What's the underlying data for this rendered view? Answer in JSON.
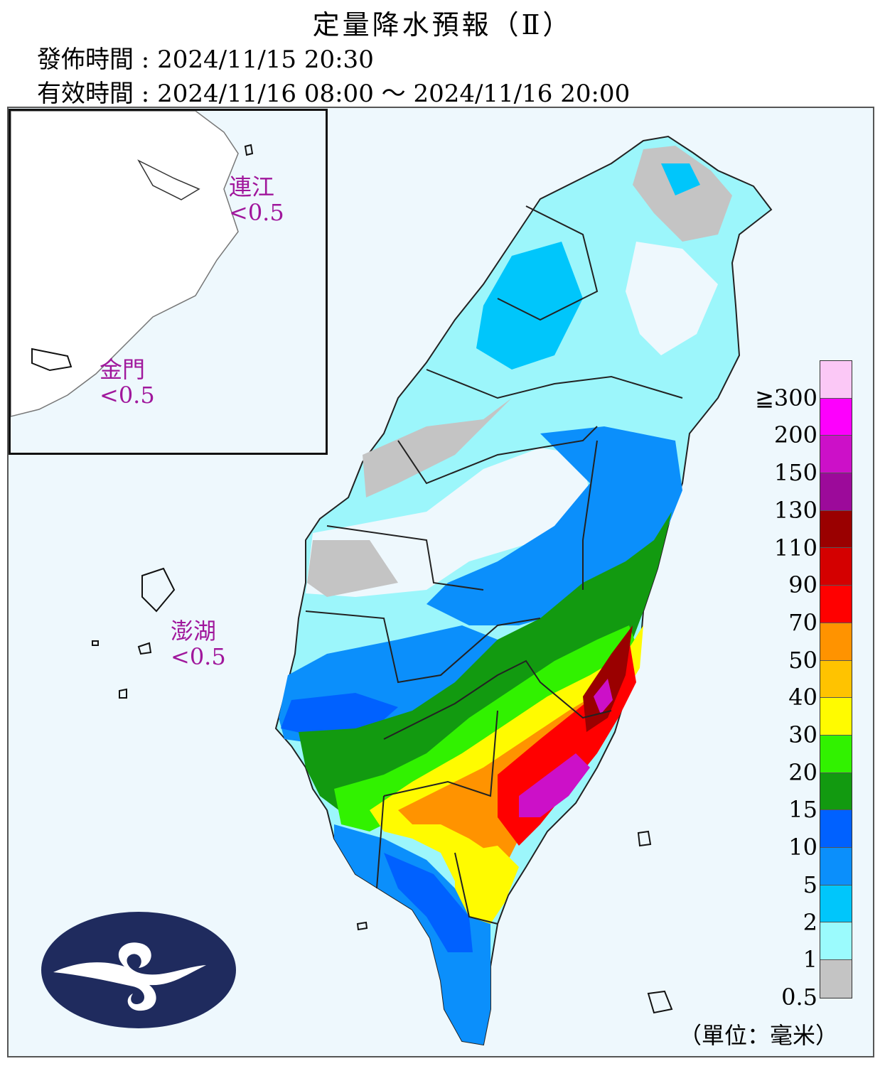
{
  "header": {
    "title": "定量降水預報（Ⅱ）",
    "issue_time": "發佈時間 : 2024/11/15 20:30",
    "valid_time": "有效時間 : 2024/11/16 08:00 ～ 2024/11/16 20:00"
  },
  "islands": {
    "lienchiang": {
      "name": "連江",
      "value": "<0.5"
    },
    "kinmen": {
      "name": "金門",
      "value": "<0.5"
    },
    "penghu": {
      "name": "澎湖",
      "value": "<0.5"
    }
  },
  "legend": {
    "unit": "（單位：毫米）",
    "labels": [
      "≧300",
      "200",
      "150",
      "130",
      "110",
      "90",
      "70",
      "50",
      "40",
      "30",
      "20",
      "15",
      "10",
      "5",
      "2",
      "1",
      "0.5"
    ],
    "colors": [
      "#fbc8f6",
      "#fd00fd",
      "#cc10c8",
      "#9c0a9a",
      "#9a0000",
      "#d40000",
      "#ff0000",
      "#ff9300",
      "#ffc300",
      "#fffb00",
      "#31f200",
      "#129a10",
      "#0061ff",
      "#0b8ffb",
      "#00c6fb",
      "#9bfbfd",
      "#c4c4c4"
    ]
  },
  "logo": {
    "name": "central-weather-administration-logo"
  }
}
